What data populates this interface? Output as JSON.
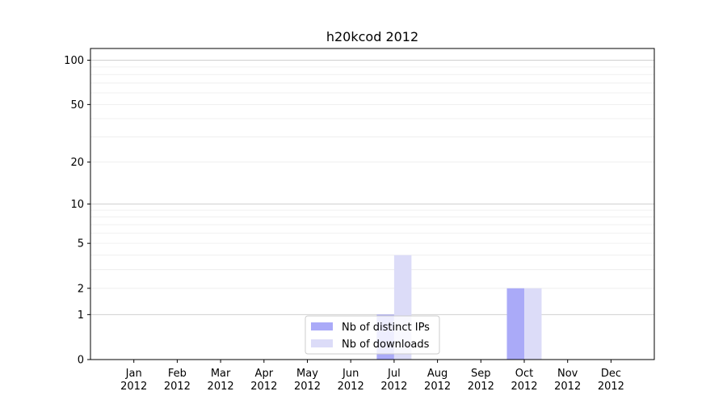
{
  "chart_data": {
    "type": "bar",
    "title": "h20kcod 2012",
    "xlabel": "",
    "ylabel": "",
    "yscale": "symlog",
    "ylim": [
      0,
      120
    ],
    "grid": "horizontal",
    "legend_placement": "bottom-center",
    "y_ticks": [
      0,
      1,
      2,
      5,
      10,
      20,
      50,
      100
    ],
    "y_tick_labels": [
      "0",
      "1",
      "2",
      "5",
      "10",
      "20",
      "50",
      "100"
    ],
    "categories": [
      "Jan\n2012",
      "Feb\n2012",
      "Mar\n2012",
      "Apr\n2012",
      "May\n2012",
      "Jun\n2012",
      "Jul\n2012",
      "Aug\n2012",
      "Sep\n2012",
      "Oct\n2012",
      "Nov\n2012",
      "Dec\n2012"
    ],
    "series": [
      {
        "name": "Nb of distinct IPs",
        "color": "#aaaaf8",
        "values": [
          0,
          0,
          0,
          0,
          0,
          0,
          1,
          0,
          0,
          2,
          0,
          0
        ]
      },
      {
        "name": "Nb of downloads",
        "color": "#dcdcf8",
        "values": [
          0,
          0,
          0,
          0,
          0,
          0,
          4,
          0,
          0,
          2,
          0,
          0
        ]
      }
    ]
  }
}
